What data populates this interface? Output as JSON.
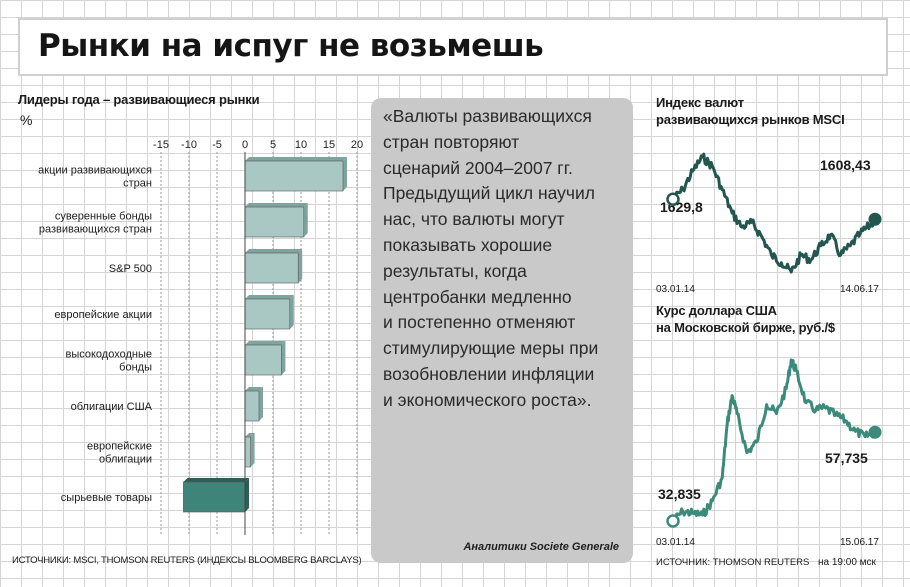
{
  "title": "Рынки на испуг не возьмешь",
  "colors": {
    "bar_positive": "#a9c8c4",
    "bar_negative": "#3f8478",
    "line_msci": "#23564e",
    "line_usd": "#3c8a7a"
  },
  "left_chart": {
    "subtitle": "Лидеры года – развивающиеся рынки",
    "unit": "%",
    "source": "ИСТОЧНИКИ: MSCI, THOMSON REUTERS (ИНДЕКСЫ BLOOMBERG BARCLAYS)"
  },
  "quote": {
    "text": "«Валюты развивающихся\nстран повторяют\nсценарий 2004–2007 гг.\nПредыдущий цикл научил\nнас, что валюты могут\nпоказывать хорошие\nрезультаты, когда\nцентробанки медленно\nи постепенно отменяют\nстимулирующие меры при\nвозобновлении инфляции\nи экономического роста».",
    "source": "Аналитики Societe Generale"
  },
  "right_top": {
    "title_line1": "Индекс валют",
    "title_line2": "развивающихся рынков MSCI",
    "start_label": "1629,8",
    "end_label": "1608,43",
    "date_start": "03.01.14",
    "date_end": "14.06.17"
  },
  "right_bottom": {
    "title_line1": "Курс доллара США",
    "title_line2": "на Московской бирже, руб./$",
    "start_label": "32,835",
    "end_label": "57,735",
    "date_start": "03.01.14",
    "date_end": "15.06.17",
    "source": "ИСТОЧНИК: THOMSON REUTERS",
    "time": "на 19:00 мск"
  },
  "chart_data": [
    {
      "type": "bar",
      "orientation": "horizontal",
      "title": "Лидеры года – развивающиеся рынки",
      "ylabel": "%",
      "xlim": [
        -15,
        20
      ],
      "ticks": [
        -15,
        -10,
        -5,
        0,
        5,
        10,
        15,
        20
      ],
      "categories": [
        "акции развивающихся\nстран",
        "суверенные бонды\nразвивающихся стран",
        "S&P 500",
        "европейские акции",
        "высокодоходные\nбонды",
        "облигации США",
        "европейские\nоблигации",
        "сырьевые товары"
      ],
      "values": [
        17.5,
        10.5,
        9.5,
        8.0,
        6.5,
        2.5,
        1.0,
        -11.0
      ]
    },
    {
      "type": "line",
      "title": "Индекс валют развивающихся рынков MSCI",
      "x_range": [
        "03.01.14",
        "14.06.17"
      ],
      "start_value": 1629.8,
      "end_value": 1608.43,
      "x": [
        "2014-01",
        "2014-03",
        "2014-05",
        "2014-07",
        "2014-09",
        "2014-11",
        "2015-01",
        "2015-03",
        "2015-05",
        "2015-07",
        "2015-09",
        "2015-11",
        "2016-01",
        "2016-03",
        "2016-05",
        "2016-07",
        "2016-09",
        "2016-11",
        "2017-01",
        "2017-03",
        "2017-05",
        "2017-06"
      ],
      "values": [
        1629.8,
        1640,
        1660,
        1675,
        1665,
        1640,
        1615,
        1600,
        1605,
        1590,
        1570,
        1562,
        1552,
        1570,
        1565,
        1580,
        1592,
        1570,
        1580,
        1593,
        1602,
        1608.43
      ]
    },
    {
      "type": "line",
      "title": "Курс доллара США на Московской бирже, руб./$",
      "x_range": [
        "03.01.14",
        "15.06.17"
      ],
      "start_value": 32.835,
      "end_value": 57.735,
      "x": [
        "2014-01",
        "2014-03",
        "2014-05",
        "2014-07",
        "2014-09",
        "2014-11",
        "2014-12",
        "2015-01",
        "2015-02",
        "2015-04",
        "2015-06",
        "2015-08",
        "2015-10",
        "2015-12",
        "2016-01",
        "2016-02",
        "2016-04",
        "2016-06",
        "2016-08",
        "2016-10",
        "2016-12",
        "2017-02",
        "2017-04",
        "2017-06"
      ],
      "values": [
        32.835,
        35.5,
        35.0,
        34.5,
        38.5,
        45.0,
        60.0,
        68.0,
        63.0,
        52.0,
        55.0,
        65.5,
        63.0,
        70.0,
        78.0,
        75.0,
        66.0,
        64.0,
        64.5,
        62.5,
        61.0,
        58.0,
        56.5,
        57.735
      ]
    }
  ]
}
